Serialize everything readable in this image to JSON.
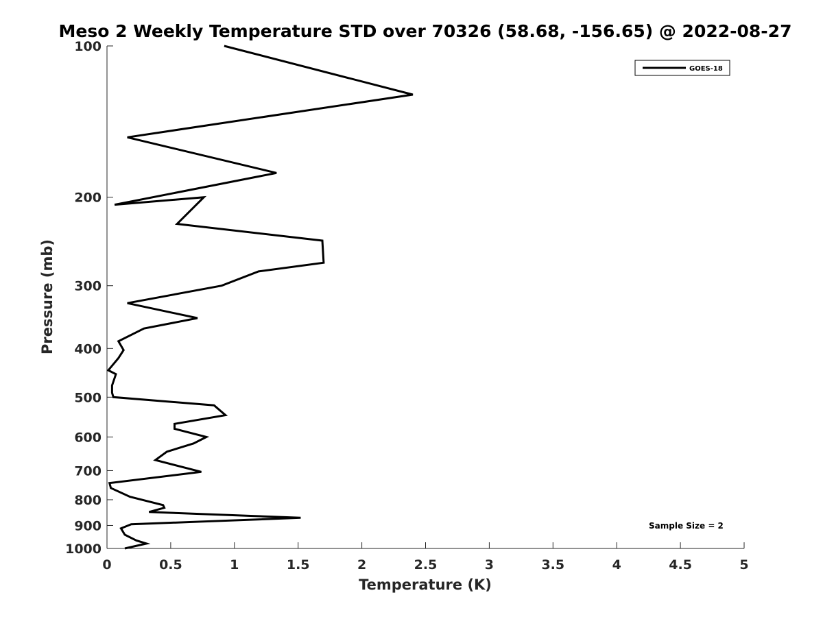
{
  "chart_data": {
    "type": "line",
    "title": "Meso 2 Weekly Temperature STD over 70326 (58.68, -156.65) @ 2022-08-27",
    "xlabel": "Temperature (K)",
    "ylabel": "Pressure (mb)",
    "xlim": [
      0,
      5
    ],
    "ylim": [
      100,
      1000
    ],
    "y_scale": "log",
    "y_reversed": true,
    "x_ticks": [
      "0",
      "0.5",
      "1",
      "1.5",
      "2",
      "2.5",
      "3",
      "3.5",
      "4",
      "4.5",
      "5"
    ],
    "y_ticks": [
      "100",
      "200",
      "300",
      "400",
      "500",
      "600",
      "700",
      "800",
      "900",
      "1000"
    ],
    "legend_position": "top-right",
    "annotation": "Sample Size = 2",
    "series": [
      {
        "name": "GOES-18",
        "color": "#000000",
        "points": [
          [
            0.92,
            100
          ],
          [
            2.4,
            125
          ],
          [
            0.16,
            152
          ],
          [
            1.33,
            179
          ],
          [
            0.06,
            207
          ],
          [
            0.76,
            200
          ],
          [
            0.55,
            226
          ],
          [
            1.69,
            244
          ],
          [
            1.7,
            270
          ],
          [
            1.19,
            281
          ],
          [
            0.9,
            300
          ],
          [
            0.16,
            325
          ],
          [
            0.71,
            348
          ],
          [
            0.29,
            365
          ],
          [
            0.09,
            387
          ],
          [
            0.13,
            403
          ],
          [
            0.09,
            418
          ],
          [
            0.01,
            442
          ],
          [
            0.07,
            450
          ],
          [
            0.04,
            474
          ],
          [
            0.04,
            490
          ],
          [
            0.05,
            500
          ],
          [
            0.84,
            519
          ],
          [
            0.93,
            543
          ],
          [
            0.53,
            565
          ],
          [
            0.53,
            578
          ],
          [
            0.78,
            600
          ],
          [
            0.68,
            618
          ],
          [
            0.47,
            642
          ],
          [
            0.38,
            667
          ],
          [
            0.74,
            704
          ],
          [
            0.02,
            741
          ],
          [
            0.03,
            758
          ],
          [
            0.18,
            789
          ],
          [
            0.44,
            820
          ],
          [
            0.45,
            830
          ],
          [
            0.33,
            846
          ],
          [
            1.52,
            869
          ],
          [
            0.19,
            895
          ],
          [
            0.11,
            912
          ],
          [
            0.14,
            939
          ],
          [
            0.23,
            964
          ],
          [
            0.31,
            978
          ],
          [
            0.14,
            1000
          ]
        ]
      }
    ]
  }
}
